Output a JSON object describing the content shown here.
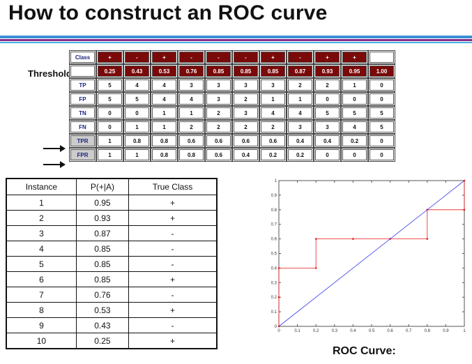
{
  "title": "How to construct an ROC curve",
  "threshold_table": {
    "class_label": "Class",
    "threshold_label": "Threshold >=",
    "classes": [
      "+",
      "-",
      "+",
      "-",
      "-",
      "-",
      "+",
      "-",
      "+",
      "+",
      ""
    ],
    "thresholds": [
      "0.25",
      "0.43",
      "0.53",
      "0.76",
      "0.85",
      "0.85",
      "0.85",
      "0.87",
      "0.93",
      "0.95",
      "1.00"
    ],
    "rows": [
      {
        "label": "TP",
        "values": [
          "5",
          "4",
          "4",
          "3",
          "3",
          "3",
          "3",
          "2",
          "2",
          "1",
          "0"
        ]
      },
      {
        "label": "FP",
        "values": [
          "5",
          "5",
          "4",
          "4",
          "3",
          "2",
          "1",
          "1",
          "0",
          "0",
          "0"
        ]
      },
      {
        "label": "TN",
        "values": [
          "0",
          "0",
          "1",
          "1",
          "2",
          "3",
          "4",
          "4",
          "5",
          "5",
          "5"
        ]
      },
      {
        "label": "FN",
        "values": [
          "0",
          "1",
          "1",
          "2",
          "2",
          "2",
          "2",
          "3",
          "3",
          "4",
          "5"
        ]
      },
      {
        "label": "TPR",
        "values": [
          "1",
          "0.8",
          "0.8",
          "0.6",
          "0.6",
          "0.6",
          "0.6",
          "0.4",
          "0.4",
          "0.2",
          "0"
        ],
        "highlight": true
      },
      {
        "label": "FPR",
        "values": [
          "1",
          "1",
          "0.8",
          "0.8",
          "0.6",
          "0.4",
          "0.2",
          "0.2",
          "0",
          "0",
          "0"
        ],
        "highlight": true
      }
    ]
  },
  "instance_table": {
    "headers": [
      "Instance",
      "P(+|A)",
      "True Class"
    ],
    "rows": [
      [
        "1",
        "0.95",
        "+"
      ],
      [
        "2",
        "0.93",
        "+"
      ],
      [
        "3",
        "0.87",
        "-"
      ],
      [
        "4",
        "0.85",
        "-"
      ],
      [
        "5",
        "0.85",
        "-"
      ],
      [
        "6",
        "0.85",
        "+"
      ],
      [
        "7",
        "0.76",
        "-"
      ],
      [
        "8",
        "0.53",
        "+"
      ],
      [
        "9",
        "0.43",
        "-"
      ],
      [
        "10",
        "0.25",
        "+"
      ]
    ]
  },
  "roc_caption": "ROC Curve:",
  "colors": {
    "header_cells": "#7a0a0a",
    "roc_line": "#e81c1c",
    "diagonal": "#3a3af0",
    "row_labels": "#1a237e",
    "rule_blue": "#3b8fd6",
    "rule_purple": "#8a2a8a"
  },
  "chart_data": {
    "type": "line",
    "xlim": [
      0,
      1
    ],
    "ylim": [
      0,
      1
    ],
    "x_ticks": [
      "0",
      "0.1",
      "0.2",
      "0.3",
      "0.4",
      "0.5",
      "0.6",
      "0.7",
      "0.8",
      "0.9",
      "1"
    ],
    "y_ticks": [
      "0",
      "0.1",
      "0.2",
      "0.3",
      "0.4",
      "0.5",
      "0.6",
      "0.7",
      "0.8",
      "0.9",
      "1"
    ],
    "grid": false,
    "series": [
      {
        "points": [
          [
            0,
            0
          ],
          [
            0,
            0.2
          ],
          [
            0,
            0.4
          ],
          [
            0.2,
            0.4
          ],
          [
            0.2,
            0.6
          ],
          [
            0.4,
            0.6
          ],
          [
            0.6,
            0.6
          ],
          [
            0.8,
            0.6
          ],
          [
            0.8,
            0.8
          ],
          [
            1,
            0.8
          ],
          [
            1,
            1
          ]
        ],
        "color": "#e81c1c",
        "markers": true
      },
      {
        "points": [
          [
            0,
            0
          ],
          [
            1,
            1
          ]
        ],
        "color": "#3a3af0",
        "markers": false
      }
    ]
  }
}
